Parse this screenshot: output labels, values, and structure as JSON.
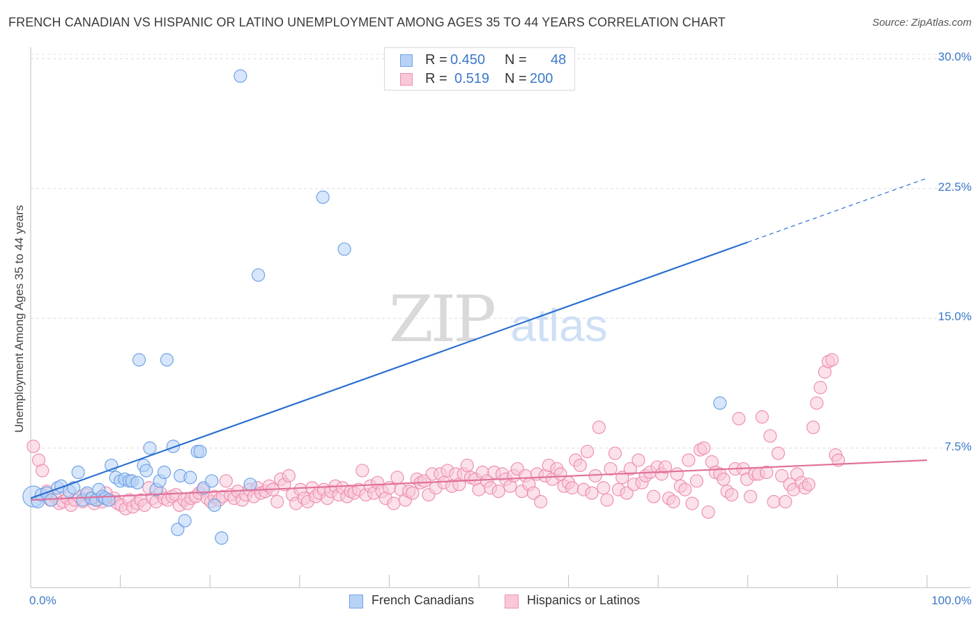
{
  "chart_data": {
    "type": "scatter",
    "title": "FRENCH CANADIAN VS HISPANIC OR LATINO UNEMPLOYMENT AMONG AGES 35 TO 44 YEARS CORRELATION CHART",
    "source": "Source: ZipAtlas.com",
    "watermark": {
      "zip": "ZIP",
      "atlas": "atlas"
    },
    "xlabel": "",
    "ylabel": "Unemployment Among Ages 35 to 44 years",
    "xlim": [
      0,
      100
    ],
    "ylim": [
      0,
      30.5
    ],
    "x_tick_labels": [
      {
        "value": 0,
        "label": "0.0%"
      },
      {
        "value": 100,
        "label": "100.0%"
      }
    ],
    "y_ticks": [
      {
        "value": 7.5,
        "label": "7.5%"
      },
      {
        "value": 15.0,
        "label": "15.0%"
      },
      {
        "value": 22.5,
        "label": "22.5%"
      },
      {
        "value": 30.0,
        "label": "30.0%"
      }
    ],
    "x_minor_ticks": [
      0,
      10,
      20,
      30,
      40,
      50,
      60,
      70,
      80,
      90,
      100
    ],
    "grid": true,
    "legend_position": "bottom",
    "stats": [
      {
        "r_label": "R =",
        "r_value": "0.450",
        "n_label": "N =",
        "n_value": "48"
      },
      {
        "r_label": "R =",
        "r_value": "0.519",
        "n_label": "N =",
        "n_value": "200"
      }
    ],
    "series": [
      {
        "name": "French Canadians",
        "color": "#6fa3e6",
        "fill": "#b7d2f5",
        "line_color": "#2a6fd0",
        "trend": {
          "x0": 0,
          "y0": 4.6,
          "x1": 80,
          "y1": 19.4,
          "dash_to_x": 100,
          "dash_to_y": 23.1
        },
        "points": [
          [
            0.3,
            4.7,
            "L"
          ],
          [
            0.8,
            4.4
          ],
          [
            1.2,
            4.8
          ],
          [
            1.8,
            4.9
          ],
          [
            2.3,
            4.5
          ],
          [
            3.0,
            5.2
          ],
          [
            3.4,
            5.3
          ],
          [
            4.3,
            5.0
          ],
          [
            4.8,
            5.2
          ],
          [
            5.3,
            6.1
          ],
          [
            5.8,
            4.5
          ],
          [
            6.3,
            4.9
          ],
          [
            6.8,
            4.6
          ],
          [
            7.3,
            4.5
          ],
          [
            7.6,
            5.1
          ],
          [
            8.0,
            4.7
          ],
          [
            8.3,
            4.6
          ],
          [
            8.7,
            4.5
          ],
          [
            9.0,
            6.5
          ],
          [
            9.5,
            5.8
          ],
          [
            10.0,
            5.6
          ],
          [
            10.5,
            5.7
          ],
          [
            11.0,
            5.6
          ],
          [
            11.3,
            5.6
          ],
          [
            11.9,
            5.5
          ],
          [
            12.1,
            12.6
          ],
          [
            12.6,
            6.5
          ],
          [
            12.9,
            6.2
          ],
          [
            13.3,
            7.5
          ],
          [
            14.0,
            5.1
          ],
          [
            14.4,
            5.6
          ],
          [
            14.9,
            6.1
          ],
          [
            15.2,
            12.6
          ],
          [
            15.9,
            7.6
          ],
          [
            16.4,
            2.8
          ],
          [
            16.7,
            5.9
          ],
          [
            17.2,
            3.3
          ],
          [
            17.8,
            5.8
          ],
          [
            18.6,
            7.3
          ],
          [
            18.9,
            7.3
          ],
          [
            19.3,
            5.2
          ],
          [
            20.2,
            5.6
          ],
          [
            20.5,
            4.2
          ],
          [
            21.3,
            2.3
          ],
          [
            23.4,
            29.0
          ],
          [
            24.5,
            5.4
          ],
          [
            25.4,
            17.5
          ],
          [
            32.6,
            22.0
          ],
          [
            35.0,
            19.0
          ],
          [
            76.9,
            10.1
          ]
        ]
      },
      {
        "name": "Hispanics or Latinos",
        "color": "#ef8fb0",
        "fill": "#f8c8d8",
        "line_color": "#e0709a",
        "trend": {
          "x0": 0,
          "y0": 4.5,
          "x1": 100,
          "y1": 6.8
        },
        "points": [
          [
            0.3,
            7.6
          ],
          [
            0.9,
            6.8
          ],
          [
            1.3,
            6.2
          ],
          [
            1.8,
            5.0
          ],
          [
            2.2,
            4.5
          ],
          [
            2.7,
            4.7
          ],
          [
            3.2,
            4.3
          ],
          [
            3.6,
            4.4
          ],
          [
            4.1,
            4.6
          ],
          [
            4.5,
            4.2
          ],
          [
            4.9,
            4.5
          ],
          [
            5.4,
            4.7
          ],
          [
            5.8,
            4.4
          ],
          [
            6.2,
            4.8
          ],
          [
            6.7,
            4.6
          ],
          [
            7.1,
            4.3
          ],
          [
            7.5,
            4.5
          ],
          [
            8.0,
            4.4
          ],
          [
            8.4,
            4.9
          ],
          [
            8.8,
            4.5
          ],
          [
            9.3,
            4.6
          ],
          [
            9.7,
            4.3
          ],
          [
            10.1,
            4.2
          ],
          [
            10.6,
            4.0
          ],
          [
            11.0,
            4.5
          ],
          [
            11.4,
            4.1
          ],
          [
            11.9,
            4.3
          ],
          [
            12.3,
            4.5
          ],
          [
            12.7,
            4.2
          ],
          [
            13.2,
            5.2
          ],
          [
            13.6,
            4.6
          ],
          [
            14.0,
            4.4
          ],
          [
            14.5,
            4.9
          ],
          [
            14.9,
            4.6
          ],
          [
            15.3,
            4.5
          ],
          [
            15.8,
            4.7
          ],
          [
            16.2,
            4.8
          ],
          [
            16.6,
            4.2
          ],
          [
            17.1,
            4.5
          ],
          [
            17.5,
            4.3
          ],
          [
            17.9,
            4.6
          ],
          [
            18.4,
            4.7
          ],
          [
            18.8,
            4.9
          ],
          [
            19.2,
            5.1
          ],
          [
            19.7,
            4.6
          ],
          [
            20.1,
            4.4
          ],
          [
            20.5,
            4.7
          ],
          [
            21.0,
            4.5
          ],
          [
            21.4,
            4.7
          ],
          [
            21.8,
            5.6
          ],
          [
            22.3,
            4.8
          ],
          [
            22.7,
            4.6
          ],
          [
            23.1,
            5.0
          ],
          [
            23.6,
            4.5
          ],
          [
            24.0,
            4.8
          ],
          [
            24.4,
            5.1
          ],
          [
            24.9,
            4.7
          ],
          [
            25.3,
            5.2
          ],
          [
            25.7,
            4.9
          ],
          [
            26.2,
            5.0
          ],
          [
            26.6,
            5.3
          ],
          [
            27.0,
            5.1
          ],
          [
            27.5,
            4.4
          ],
          [
            27.9,
            5.7
          ],
          [
            28.3,
            5.4
          ],
          [
            28.8,
            5.9
          ],
          [
            29.2,
            4.8
          ],
          [
            29.6,
            4.3
          ],
          [
            30.1,
            5.1
          ],
          [
            30.5,
            4.6
          ],
          [
            30.9,
            4.4
          ],
          [
            31.4,
            5.2
          ],
          [
            31.8,
            4.7
          ],
          [
            32.2,
            4.9
          ],
          [
            32.7,
            5.1
          ],
          [
            33.1,
            4.6
          ],
          [
            33.5,
            5.0
          ],
          [
            34.0,
            5.3
          ],
          [
            34.4,
            4.8
          ],
          [
            34.8,
            5.2
          ],
          [
            35.3,
            4.7
          ],
          [
            35.7,
            5.0
          ],
          [
            36.1,
            4.9
          ],
          [
            36.6,
            5.1
          ],
          [
            37.0,
            6.2
          ],
          [
            37.4,
            4.8
          ],
          [
            37.9,
            5.3
          ],
          [
            38.3,
            4.9
          ],
          [
            38.7,
            5.5
          ],
          [
            39.2,
            5.0
          ],
          [
            39.6,
            4.6
          ],
          [
            40.0,
            5.2
          ],
          [
            40.5,
            4.3
          ],
          [
            40.9,
            5.8
          ],
          [
            41.3,
            5.1
          ],
          [
            41.8,
            4.5
          ],
          [
            42.2,
            5.0
          ],
          [
            42.6,
            4.9
          ],
          [
            43.1,
            5.7
          ],
          [
            43.5,
            5.5
          ],
          [
            43.9,
            5.6
          ],
          [
            44.4,
            4.8
          ],
          [
            44.8,
            6.0
          ],
          [
            45.2,
            5.2
          ],
          [
            45.7,
            6.0
          ],
          [
            46.1,
            5.5
          ],
          [
            46.5,
            6.2
          ],
          [
            47.0,
            5.3
          ],
          [
            47.4,
            6.0
          ],
          [
            47.8,
            5.4
          ],
          [
            48.3,
            6.0
          ],
          [
            48.7,
            6.5
          ],
          [
            49.1,
            5.8
          ],
          [
            49.6,
            5.7
          ],
          [
            50.0,
            5.1
          ],
          [
            50.4,
            6.1
          ],
          [
            50.9,
            5.6
          ],
          [
            51.3,
            5.2
          ],
          [
            51.7,
            6.1
          ],
          [
            52.2,
            5.0
          ],
          [
            52.6,
            6.0
          ],
          [
            53.0,
            5.7
          ],
          [
            53.5,
            5.3
          ],
          [
            53.9,
            5.9
          ],
          [
            54.3,
            6.3
          ],
          [
            54.8,
            5.0
          ],
          [
            55.2,
            5.9
          ],
          [
            55.6,
            5.4
          ],
          [
            56.1,
            4.9
          ],
          [
            56.5,
            6.0
          ],
          [
            56.9,
            4.4
          ],
          [
            57.4,
            5.9
          ],
          [
            57.8,
            6.5
          ],
          [
            58.2,
            5.7
          ],
          [
            58.7,
            6.3
          ],
          [
            59.1,
            6.0
          ],
          [
            59.5,
            5.3
          ],
          [
            60.0,
            5.5
          ],
          [
            60.4,
            5.2
          ],
          [
            60.8,
            6.8
          ],
          [
            61.3,
            6.5
          ],
          [
            61.7,
            5.1
          ],
          [
            62.1,
            7.3
          ],
          [
            62.6,
            4.9
          ],
          [
            63.0,
            5.9
          ],
          [
            63.4,
            8.7
          ],
          [
            63.9,
            5.2
          ],
          [
            64.3,
            4.5
          ],
          [
            64.7,
            6.3
          ],
          [
            65.2,
            7.2
          ],
          [
            65.6,
            5.1
          ],
          [
            66.0,
            5.8
          ],
          [
            66.5,
            4.9
          ],
          [
            66.9,
            6.3
          ],
          [
            67.3,
            5.4
          ],
          [
            67.8,
            6.8
          ],
          [
            68.2,
            5.5
          ],
          [
            68.6,
            5.9
          ],
          [
            69.1,
            6.1
          ],
          [
            69.5,
            4.7
          ],
          [
            69.9,
            6.4
          ],
          [
            70.4,
            6.0
          ],
          [
            70.8,
            6.4
          ],
          [
            71.2,
            4.6
          ],
          [
            71.7,
            4.4
          ],
          [
            72.1,
            6.0
          ],
          [
            72.5,
            5.3
          ],
          [
            73.0,
            5.1
          ],
          [
            73.4,
            6.8
          ],
          [
            73.8,
            4.3
          ],
          [
            74.3,
            5.6
          ],
          [
            74.7,
            7.4
          ],
          [
            75.1,
            7.5
          ],
          [
            75.6,
            3.8
          ],
          [
            76.0,
            6.7
          ],
          [
            76.4,
            6.1
          ],
          [
            76.9,
            6.0
          ],
          [
            77.3,
            5.7
          ],
          [
            77.7,
            5.0
          ],
          [
            78.2,
            4.8
          ],
          [
            78.6,
            6.3
          ],
          [
            79.0,
            9.2
          ],
          [
            79.5,
            6.3
          ],
          [
            79.9,
            5.7
          ],
          [
            80.3,
            4.7
          ],
          [
            80.8,
            6.0
          ],
          [
            81.2,
            6.0
          ],
          [
            81.6,
            9.3
          ],
          [
            82.1,
            6.1
          ],
          [
            82.5,
            8.2
          ],
          [
            82.9,
            4.4
          ],
          [
            83.4,
            7.2
          ],
          [
            83.8,
            5.9
          ],
          [
            84.2,
            4.4
          ],
          [
            84.7,
            5.4
          ],
          [
            85.1,
            5.1
          ],
          [
            85.5,
            6.0
          ],
          [
            86.0,
            5.5
          ],
          [
            86.4,
            5.2
          ],
          [
            86.8,
            5.4
          ],
          [
            87.3,
            8.7
          ],
          [
            87.7,
            10.1
          ],
          [
            88.1,
            11.0
          ],
          [
            88.6,
            11.9
          ],
          [
            89.0,
            12.5
          ],
          [
            89.4,
            12.6
          ],
          [
            89.8,
            7.1
          ],
          [
            90.1,
            6.8
          ]
        ]
      }
    ]
  }
}
